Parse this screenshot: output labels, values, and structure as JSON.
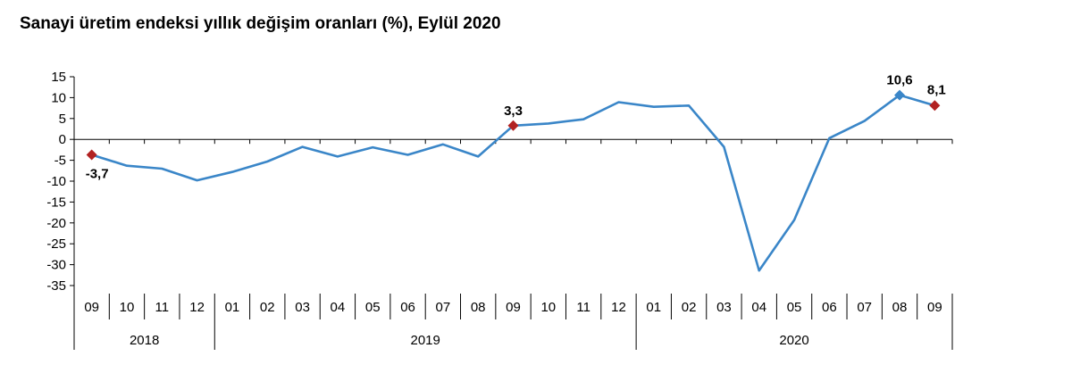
{
  "chart_data": {
    "type": "line",
    "title": "Sanayi üretim endeksi  yıllık değişim oranları (%), Eylül 2020",
    "ylim": [
      -35,
      15
    ],
    "yticks": [
      15,
      10,
      5,
      0,
      -5,
      -10,
      -15,
      -20,
      -25,
      -30,
      -35
    ],
    "grid": false,
    "categories": [
      "09",
      "10",
      "11",
      "12",
      "01",
      "02",
      "03",
      "04",
      "05",
      "06",
      "07",
      "08",
      "09",
      "10",
      "11",
      "12",
      "01",
      "02",
      "03",
      "04",
      "05",
      "06",
      "07",
      "08",
      "09"
    ],
    "years": [
      {
        "label": "2018",
        "span": 4
      },
      {
        "label": "2019",
        "span": 12
      },
      {
        "label": "2020",
        "span": 9
      }
    ],
    "series": [
      {
        "values": [
          -3.7,
          -6.3,
          -7.0,
          -9.8,
          -7.8,
          -5.3,
          -1.8,
          -4.1,
          -1.9,
          -3.7,
          -1.2,
          -4.1,
          3.3,
          3.8,
          4.8,
          8.9,
          7.8,
          8.1,
          -1.8,
          -31.4,
          -19.3,
          0.3,
          4.4,
          10.6,
          8.1
        ],
        "color": "#3a86c8"
      }
    ],
    "highlights": [
      {
        "index": 0,
        "label": "-3,7",
        "color": "#b22222",
        "shape": "diamond"
      },
      {
        "index": 12,
        "label": "3,3",
        "color": "#b22222",
        "shape": "diamond"
      },
      {
        "index": 23,
        "label": "10,6",
        "color": "#3a86c8",
        "shape": "diamond"
      },
      {
        "index": 24,
        "label": "8,1",
        "color": "#b22222",
        "shape": "diamond"
      }
    ]
  }
}
